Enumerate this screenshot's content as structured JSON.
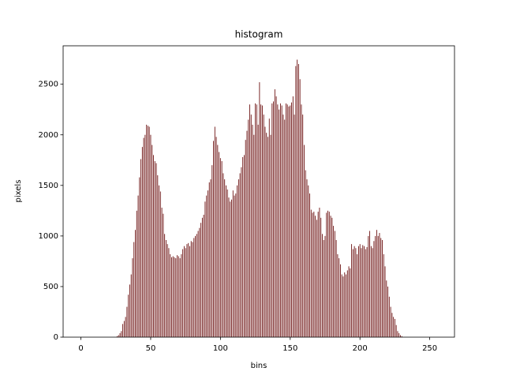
{
  "chart_data": {
    "type": "bar",
    "title": "histogram",
    "x_label": "bins",
    "y_label": "pixels",
    "x": [
      0,
      1,
      2,
      3,
      4,
      5,
      6,
      7,
      8,
      9,
      10,
      11,
      12,
      13,
      14,
      15,
      16,
      17,
      18,
      19,
      20,
      21,
      22,
      23,
      24,
      25,
      26,
      27,
      28,
      29,
      30,
      31,
      32,
      33,
      34,
      35,
      36,
      37,
      38,
      39,
      40,
      41,
      42,
      43,
      44,
      45,
      46,
      47,
      48,
      49,
      50,
      51,
      52,
      53,
      54,
      55,
      56,
      57,
      58,
      59,
      60,
      61,
      62,
      63,
      64,
      65,
      66,
      67,
      68,
      69,
      70,
      71,
      72,
      73,
      74,
      75,
      76,
      77,
      78,
      79,
      80,
      81,
      82,
      83,
      84,
      85,
      86,
      87,
      88,
      89,
      90,
      91,
      92,
      93,
      94,
      95,
      96,
      97,
      98,
      99,
      100,
      101,
      102,
      103,
      104,
      105,
      106,
      107,
      108,
      109,
      110,
      111,
      112,
      113,
      114,
      115,
      116,
      117,
      118,
      119,
      120,
      121,
      122,
      123,
      124,
      125,
      126,
      127,
      128,
      129,
      130,
      131,
      132,
      133,
      134,
      135,
      136,
      137,
      138,
      139,
      140,
      141,
      142,
      143,
      144,
      145,
      146,
      147,
      148,
      149,
      150,
      151,
      152,
      153,
      154,
      155,
      156,
      157,
      158,
      159,
      160,
      161,
      162,
      163,
      164,
      165,
      166,
      167,
      168,
      169,
      170,
      171,
      172,
      173,
      174,
      175,
      176,
      177,
      178,
      179,
      180,
      181,
      182,
      183,
      184,
      185,
      186,
      187,
      188,
      189,
      190,
      191,
      192,
      193,
      194,
      195,
      196,
      197,
      198,
      199,
      200,
      201,
      202,
      203,
      204,
      205,
      206,
      207,
      208,
      209,
      210,
      211,
      212,
      213,
      214,
      215,
      216,
      217,
      218,
      219,
      220,
      221,
      222,
      223,
      224,
      225,
      226,
      227,
      228,
      229,
      230,
      231,
      232,
      233,
      234,
      235,
      236,
      237,
      238,
      239,
      240,
      241,
      242,
      243,
      244,
      245,
      246,
      247,
      248,
      249,
      250,
      251,
      252,
      253,
      254,
      255
    ],
    "values": [
      0,
      0,
      0,
      0,
      0,
      0,
      0,
      0,
      0,
      0,
      0,
      0,
      0,
      0,
      0,
      0,
      0,
      0,
      0,
      0,
      0,
      0,
      0,
      0,
      0,
      0,
      10,
      20,
      40,
      60,
      130,
      160,
      200,
      300,
      420,
      520,
      620,
      780,
      940,
      1060,
      1250,
      1400,
      1580,
      1760,
      1880,
      1970,
      2000,
      2100,
      2090,
      2080,
      2000,
      1900,
      1800,
      1740,
      1720,
      1600,
      1500,
      1440,
      1280,
      1220,
      1020,
      960,
      920,
      880,
      820,
      790,
      800,
      790,
      780,
      810,
      800,
      780,
      820,
      870,
      900,
      880,
      920,
      930,
      900,
      950,
      940,
      980,
      1000,
      1020,
      1050,
      1080,
      1130,
      1180,
      1210,
      1340,
      1400,
      1450,
      1530,
      1560,
      1700,
      1940,
      2080,
      1980,
      1900,
      1830,
      1770,
      1740,
      1620,
      1560,
      1500,
      1460,
      1380,
      1340,
      1360,
      1450,
      1400,
      1420,
      1500,
      1560,
      1620,
      1680,
      1780,
      1800,
      1950,
      2040,
      2150,
      2300,
      2200,
      2100,
      2000,
      2310,
      2300,
      2100,
      2520,
      2300,
      2290,
      2200,
      2080,
      2020,
      1980,
      2160,
      2000,
      2310,
      2330,
      2450,
      2380,
      2300,
      2250,
      2310,
      2290,
      2200,
      2150,
      2310,
      2300,
      2280,
      2290,
      2320,
      2380,
      2200,
      2680,
      2743,
      2700,
      2550,
      2300,
      2200,
      1900,
      1650,
      1560,
      1500,
      1420,
      1260,
      1230,
      1240,
      1200,
      1160,
      1240,
      1280,
      1180,
      1020,
      960,
      1000,
      1230,
      1250,
      1240,
      1200,
      1180,
      1100,
      1050,
      960,
      820,
      780,
      720,
      620,
      600,
      640,
      620,
      660,
      700,
      680,
      920,
      870,
      900,
      880,
      820,
      900,
      920,
      880,
      910,
      900,
      870,
      890,
      1000,
      1050,
      900,
      880,
      950,
      1000,
      1060,
      1000,
      1030,
      980,
      960,
      820,
      700,
      560,
      500,
      400,
      300,
      240,
      200,
      180,
      120,
      60,
      40,
      20,
      10,
      0,
      0,
      0,
      0,
      0,
      0,
      0,
      0,
      0,
      0,
      0,
      0,
      0,
      0,
      0,
      0,
      0,
      0,
      0,
      0,
      0,
      0,
      0,
      0,
      0
    ],
    "color": "#6b0f0f",
    "bar_width": 0.5,
    "xlim": [
      -12.75,
      267.75
    ],
    "xticks": [
      0,
      50,
      100,
      150,
      200,
      250
    ],
    "ylim": [
      0,
      2880
    ],
    "yticks": [
      0,
      500,
      1000,
      1500,
      2000,
      2500
    ]
  }
}
